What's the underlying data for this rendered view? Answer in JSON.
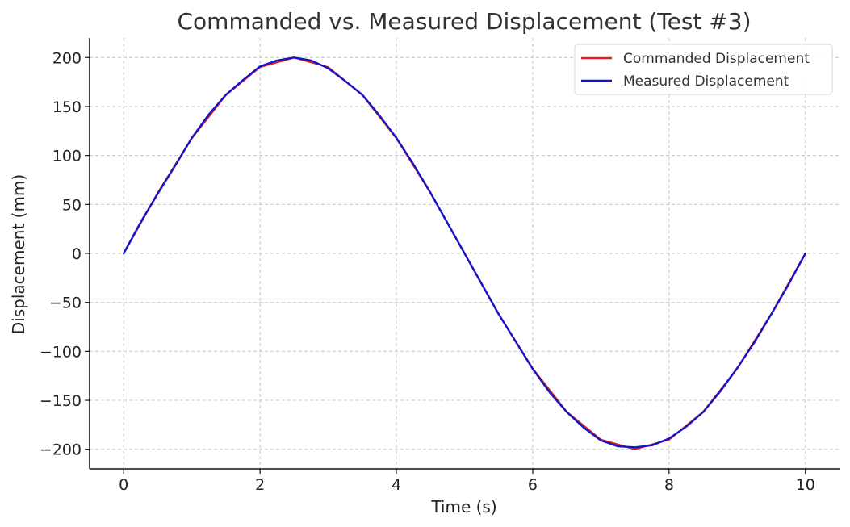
{
  "chart_data": {
    "type": "line",
    "title": "Commanded vs. Measured Displacement (Test #3)",
    "xlabel": "Time (s)",
    "ylabel": "Displacement (mm)",
    "xlim": [
      -0.5,
      10.5
    ],
    "ylim": [
      -220,
      220
    ],
    "x_ticks": [
      0,
      2,
      4,
      6,
      8,
      10
    ],
    "x_tick_labels": [
      "0",
      "2",
      "4",
      "6",
      "8",
      "10"
    ],
    "y_ticks": [
      200,
      150,
      100,
      50,
      0,
      -50,
      -100,
      -150,
      -200
    ],
    "y_tick_labels": [
      "200",
      "150",
      "100",
      "50",
      "0",
      "−50",
      "−100",
      "−150",
      "−200"
    ],
    "grid": true,
    "legend_position": "top-right",
    "series": [
      {
        "name": "Commanded Displacement",
        "color": "#e0201c",
        "x": [
          0,
          0.5,
          1,
          1.5,
          2,
          2.5,
          3,
          3.5,
          4,
          4.5,
          5,
          5.5,
          6,
          6.5,
          7,
          7.5,
          8,
          8.5,
          9,
          9.5,
          10
        ],
        "y": [
          0,
          61.8,
          117.6,
          161.8,
          190.2,
          200,
          190.2,
          161.8,
          117.6,
          61.8,
          0,
          -61.8,
          -117.6,
          -161.8,
          -190.2,
          -200,
          -190.2,
          -161.8,
          -117.6,
          -61.8,
          0
        ]
      },
      {
        "name": "Measured Displacement",
        "color": "#1515c8",
        "x": [
          0,
          0.25,
          0.5,
          0.75,
          1,
          1.25,
          1.5,
          1.75,
          2,
          2.25,
          2.5,
          2.75,
          3,
          3.25,
          3.5,
          3.75,
          4,
          4.25,
          4.5,
          4.75,
          5,
          5.25,
          5.5,
          5.75,
          6,
          6.25,
          6.5,
          6.75,
          7,
          7.25,
          7.5,
          7.75,
          8,
          8.25,
          8.5,
          8.75,
          9,
          9.25,
          9.5,
          9.75,
          10
        ],
        "y": [
          0,
          32,
          61,
          89,
          118,
          142,
          162,
          177,
          191,
          197,
          200,
          197,
          189,
          176,
          162,
          141,
          118,
          91,
          62,
          31,
          0,
          -31,
          -62,
          -90,
          -118,
          -142,
          -162,
          -178,
          -191,
          -197,
          -198,
          -196,
          -189,
          -177,
          -162,
          -141,
          -117,
          -91,
          -62,
          -32,
          0
        ]
      }
    ]
  }
}
